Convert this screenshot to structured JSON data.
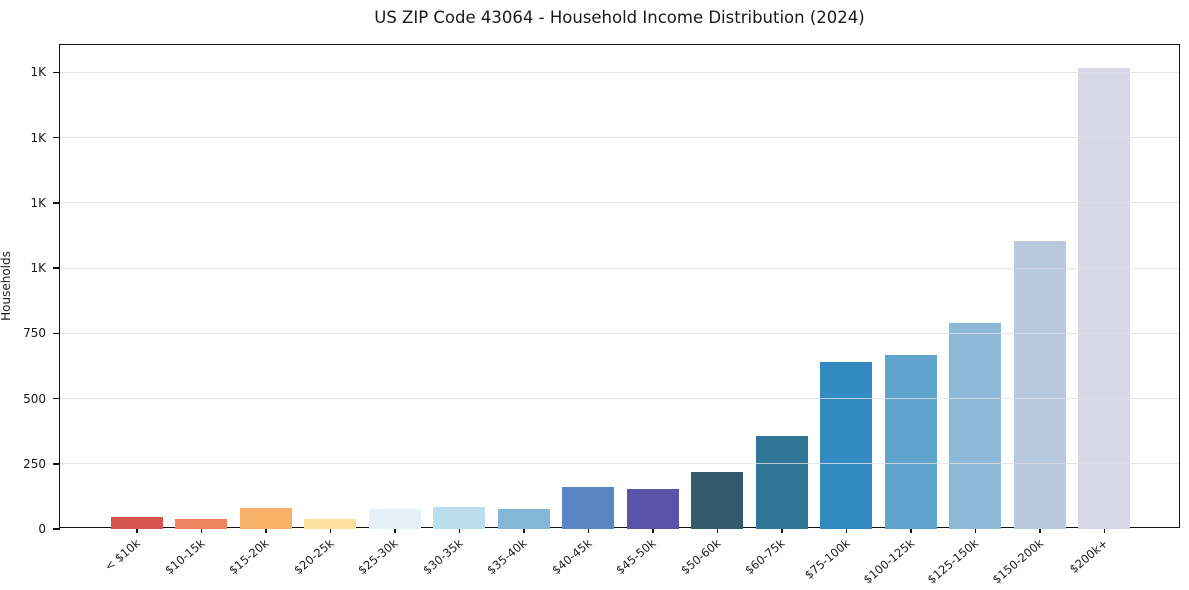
{
  "chart_data": {
    "type": "bar",
    "title": "US ZIP Code 43064 - Household Income Distribution (2024)",
    "xlabel": "",
    "ylabel": "Households",
    "categories": [
      "< $10k",
      "$10-15k",
      "$15-20k",
      "$20-25k",
      "$25-30k",
      "$30-35k",
      "$35-40k",
      "$40-45k",
      "$45-50k",
      "$50-60k",
      "$60-75k",
      "$75-100k",
      "$100-125k",
      "$125-150k",
      "$150-200k",
      "$200k+"
    ],
    "values": [
      45,
      40,
      80,
      40,
      78,
      86,
      78,
      160,
      152,
      220,
      358,
      640,
      665,
      790,
      1105,
      1765
    ],
    "bar_colors": [
      "#d6544f",
      "#ee8460",
      "#f8b168",
      "#fbe19d",
      "#e4f1f7",
      "#badeec",
      "#84b6d8",
      "#5c85c4",
      "#5a54a8",
      "#33596d",
      "#2f7596",
      "#338ac1",
      "#5fa4cc",
      "#8db8d8",
      "#b8c9de",
      "#d8d8e6"
    ],
    "ylim": [
      0,
      1855
    ],
    "yticks": [
      {
        "value": 0,
        "label": "0"
      },
      {
        "value": 250,
        "label": "250"
      },
      {
        "value": 500,
        "label": "500"
      },
      {
        "value": 750,
        "label": "750"
      },
      {
        "value": 1000,
        "label": "1K"
      },
      {
        "value": 1250,
        "label": "1K"
      },
      {
        "value": 1500,
        "label": "1K"
      },
      {
        "value": 1750,
        "label": "1K"
      }
    ],
    "grid": "horizontal",
    "legend": "none",
    "colors": {
      "grid": "rgba(222,222,231,0.8)",
      "axis": "#111111",
      "text": "#1a1a1a",
      "background": "#ffffff"
    }
  }
}
